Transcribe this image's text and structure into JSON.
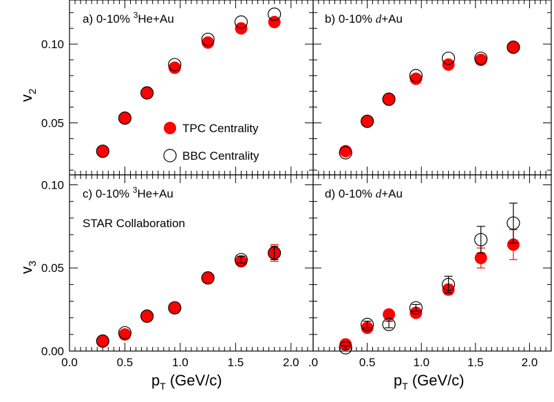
{
  "figure": {
    "ylabel_top": "v",
    "ylabel_top_sub": "2",
    "ylabel_bottom": "v",
    "ylabel_bottom_sub": "3",
    "xlabel_main": "p",
    "xlabel_sub": "T",
    "xlabel_units": "(GeV/c)",
    "collaboration": "STAR Collaboration",
    "legend": [
      {
        "label": "TPC Centrality",
        "style": "filled",
        "color": "#ff0000"
      },
      {
        "label": "BBC Centrality",
        "style": "open",
        "color": "#000000"
      }
    ],
    "x_ticks": [
      "0.0",
      "0.5",
      "1.0",
      "1.5",
      "2.0"
    ],
    "x_ticks_right": [
      ".0",
      "0.5",
      "1.0",
      "1.5",
      "2.0"
    ],
    "y_ticks_top": [
      "0.05",
      "0.10"
    ],
    "y_ticks_bottom": [
      "0.00",
      "0.05",
      "0.10"
    ]
  },
  "chart_data": [
    {
      "type": "scatter",
      "panel": "a",
      "label_pre": "a) 0-10% ",
      "label_sup": "3",
      "label_post": "He+Au",
      "xlim": [
        0.0,
        2.2
      ],
      "ylim": [
        0.017,
        0.128
      ],
      "series": [
        {
          "name": "TPC Centrality",
          "x": [
            0.3,
            0.5,
            0.7,
            0.95,
            1.25,
            1.55,
            1.85
          ],
          "y": [
            0.032,
            0.053,
            0.069,
            0.085,
            0.101,
            0.11,
            0.114
          ],
          "err": [
            0,
            0,
            0,
            0,
            0,
            0,
            0
          ]
        },
        {
          "name": "BBC Centrality",
          "x": [
            0.3,
            0.5,
            0.7,
            0.95,
            1.25,
            1.55,
            1.85
          ],
          "y": [
            0.032,
            0.053,
            0.069,
            0.087,
            0.103,
            0.114,
            0.119
          ],
          "err": [
            0,
            0,
            0,
            0,
            0,
            0,
            0
          ]
        }
      ]
    },
    {
      "type": "scatter",
      "panel": "b",
      "label_pre": "b) 0-10% ",
      "label_italic": "d",
      "label_post": "+Au",
      "xlim": [
        0.0,
        2.2
      ],
      "ylim": [
        0.017,
        0.128
      ],
      "series": [
        {
          "name": "TPC Centrality",
          "x": [
            0.3,
            0.5,
            0.7,
            0.95,
            1.25,
            1.55,
            1.85
          ],
          "y": [
            0.032,
            0.051,
            0.065,
            0.078,
            0.087,
            0.09,
            0.098
          ],
          "err": [
            0,
            0,
            0,
            0,
            0,
            0,
            0
          ]
        },
        {
          "name": "BBC Centrality",
          "x": [
            0.3,
            0.5,
            0.7,
            0.95,
            1.25,
            1.55,
            1.85
          ],
          "y": [
            0.031,
            0.051,
            0.065,
            0.08,
            0.091,
            0.091,
            0.098
          ],
          "err": [
            0,
            0,
            0,
            0,
            0,
            0,
            0
          ]
        }
      ]
    },
    {
      "type": "scatter",
      "panel": "c",
      "label_pre": "c) 0-10% ",
      "label_sup": "3",
      "label_post": "He+Au",
      "xlim": [
        0.0,
        2.2
      ],
      "ylim": [
        0.0,
        0.106
      ],
      "series": [
        {
          "name": "TPC Centrality",
          "x": [
            0.3,
            0.5,
            0.7,
            0.95,
            1.25,
            1.55,
            1.85
          ],
          "y": [
            0.006,
            0.01,
            0.021,
            0.026,
            0.044,
            0.054,
            0.059
          ],
          "err": [
            0,
            0,
            0,
            0,
            0,
            0.002,
            0.005
          ]
        },
        {
          "name": "BBC Centrality",
          "x": [
            0.3,
            0.5,
            0.7,
            0.95,
            1.25,
            1.55,
            1.85
          ],
          "y": [
            0.006,
            0.011,
            0.021,
            0.026,
            0.044,
            0.055,
            0.059
          ],
          "err": [
            0,
            0,
            0,
            0,
            0,
            0.002,
            0.004
          ]
        }
      ]
    },
    {
      "type": "scatter",
      "panel": "d",
      "label_pre": "d) 0-10% ",
      "label_italic": "d",
      "label_post": "+Au",
      "xlim": [
        0.0,
        2.2
      ],
      "ylim": [
        0.0,
        0.106
      ],
      "series": [
        {
          "name": "TPC Centrality",
          "x": [
            0.3,
            0.5,
            0.7,
            0.95,
            1.25,
            1.55,
            1.85
          ],
          "y": [
            0.004,
            0.014,
            0.022,
            0.023,
            0.037,
            0.056,
            0.064
          ],
          "err": [
            0.002,
            0.002,
            0.002,
            0.002,
            0.003,
            0.006,
            0.009
          ]
        },
        {
          "name": "BBC Centrality",
          "x": [
            0.3,
            0.5,
            0.7,
            0.95,
            1.25,
            1.55,
            1.85
          ],
          "y": [
            0.002,
            0.016,
            0.016,
            0.026,
            0.04,
            0.067,
            0.077
          ],
          "err": [
            0.001,
            0.002,
            0.002,
            0.002,
            0.005,
            0.008,
            0.012
          ]
        }
      ]
    }
  ]
}
